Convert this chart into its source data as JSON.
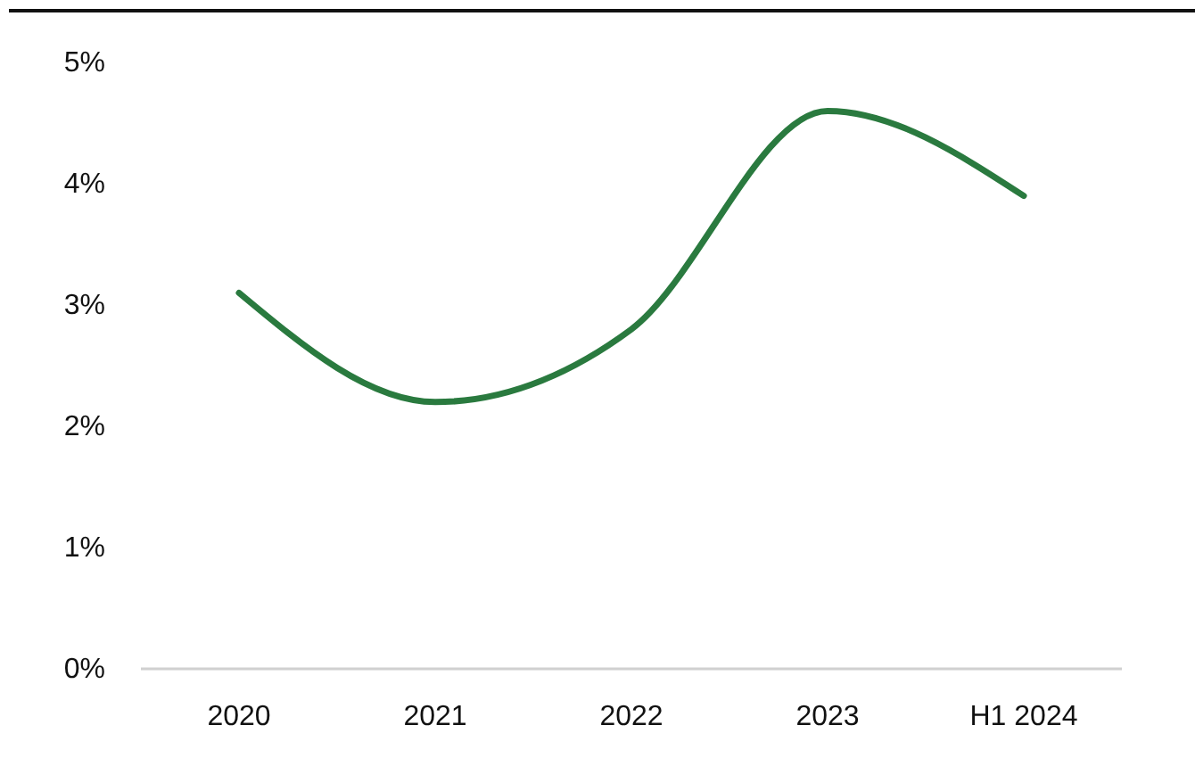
{
  "chart_data": {
    "type": "line",
    "categories": [
      "2020",
      "2021",
      "2022",
      "2023",
      "H1 2024"
    ],
    "series": [
      {
        "color": "#2a7a3f",
        "values": [
          3.1,
          2.2,
          2.8,
          4.6,
          3.9
        ]
      }
    ],
    "ylim": [
      0,
      5
    ],
    "yticks": [
      {
        "value": 0,
        "label": "0%"
      },
      {
        "value": 1,
        "label": "1%"
      },
      {
        "value": 2,
        "label": "2%"
      },
      {
        "value": 3,
        "label": "3%"
      },
      {
        "value": 4,
        "label": "4%"
      },
      {
        "value": 5,
        "label": "5%"
      }
    ],
    "grid": false,
    "marker": "none",
    "line_style": "solid"
  }
}
